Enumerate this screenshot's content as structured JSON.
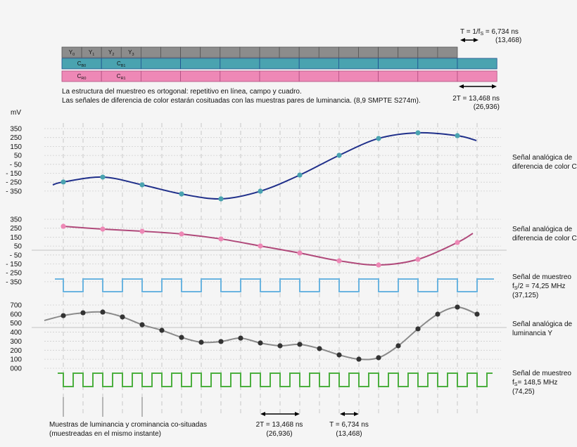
{
  "top": {
    "period_label": "T = 1/f",
    "period_sub": "S",
    "period_value": " = 6,734 ns",
    "period_paren": "(13,468)",
    "y_cells": [
      {
        "base": "Y",
        "sub": "0"
      },
      {
        "base": "Y",
        "sub": "1"
      },
      {
        "base": "Y",
        "sub": "2"
      },
      {
        "base": "Y",
        "sub": "3"
      }
    ],
    "cb_cells": [
      {
        "base": "C",
        "sub": "B0"
      },
      {
        "base": "C",
        "sub": "B1"
      }
    ],
    "cr_cells": [
      {
        "base": "C",
        "sub": "R0"
      },
      {
        "base": "C",
        "sub": "R1"
      }
    ],
    "note1": "La estructura del muestreo es ortogonal: repetitivo en línea, campo y cuadro.",
    "note2": "Las señales de diferencia de color estarán cosituadas con las muestras pares de luminancia. (8,9 SMPTE S274m).",
    "twoT_label": "2T = 13,468 ns",
    "twoT_paren": "(26,936)"
  },
  "unit": "mV",
  "cb_ticks": [
    "350",
    "250",
    "150",
    "50",
    "- 50",
    "- 150",
    "- 250",
    "- 350"
  ],
  "cr_ticks": [
    "350",
    "250",
    "150",
    "50",
    "- 50",
    "- 150",
    "- 250",
    "- 350"
  ],
  "y_ticks": [
    "700",
    "600",
    "500",
    "400",
    "300",
    "200",
    "100",
    "000"
  ],
  "colors": {
    "cb_bar": "#4aa3b0",
    "cr_bar": "#ee88b6",
    "y_bar": "#8c8c8c",
    "cb_curve": "#1f2f8a",
    "cr_curve": "#b0497a",
    "y_curve": "#8a8a8a",
    "clk_half": "#6ab4e0",
    "clk_full": "#4caf3f"
  },
  "labels": {
    "cb": {
      "line1": "Señal analógica de",
      "line2": "diferencia de color C",
      "sub": "B"
    },
    "cr": {
      "line1": "Señal analógica de",
      "line2": "diferencia de color C",
      "sub": "R"
    },
    "clk_half": {
      "line1": "Señal de muestreo",
      "line2a": "f",
      "line2sub": "S",
      "line2b": "/2 = 74,25 MHz",
      "line3": "(37,125)"
    },
    "y": {
      "line1": "Señal analógica de",
      "line2": "luminancia Y"
    },
    "clk_full": {
      "line1": "Señal de muestreo",
      "line2a": "f",
      "line2sub": "S",
      "line2b": "= 148,5 MHz",
      "line3": "(74,25)"
    }
  },
  "bottom": {
    "cosited1": "Muestras de luminancia y crominancia co-situadas",
    "cosited2": "(muestreadas en el mismo instante)",
    "twoT_label": "2T = 13,468 ns",
    "twoT_paren": "(26,936)",
    "T_label": "T = 6,734 ns",
    "T_paren": "(13,468)"
  },
  "series": {
    "cb_samples_mV": [
      -248,
      -193,
      -280,
      -382,
      -437,
      -351,
      -170,
      51,
      240,
      303,
      271
    ],
    "cr_samples_mV": [
      271,
      240,
      216,
      185,
      130,
      51,
      -28,
      -115,
      -162,
      -99,
      90
    ],
    "y_samples_mV": [
      583,
      614,
      622,
      568,
      482,
      420,
      342,
      288,
      296,
      334,
      280,
      249,
      265,
      218,
      148,
      101,
      117,
      249,
      436,
      599,
      677,
      599
    ]
  }
}
